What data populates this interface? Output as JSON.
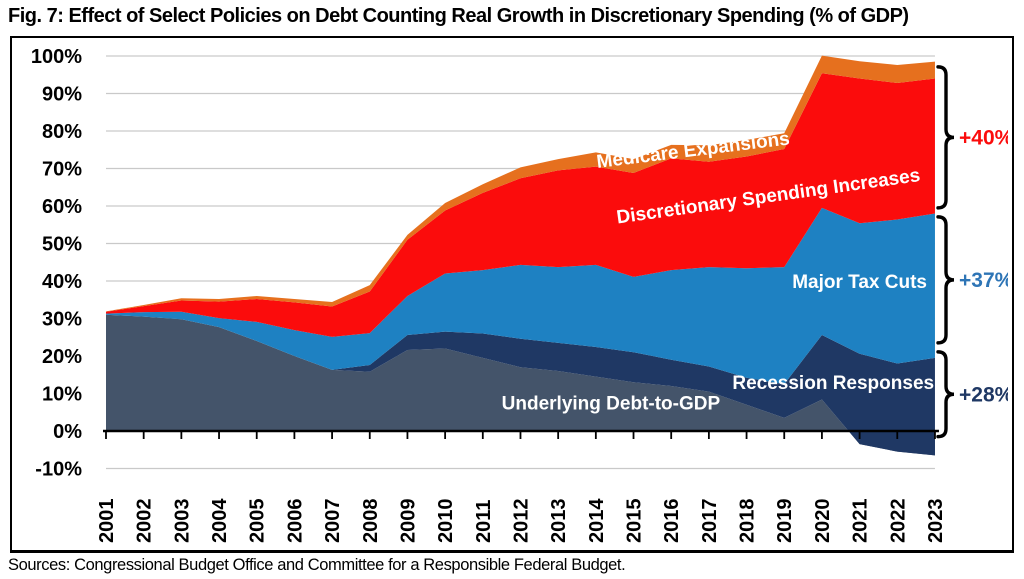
{
  "figure": {
    "title": "Fig. 7: Effect of Select Policies on Debt Counting Real Growth in Discretionary Spending (% of GDP)",
    "source": "Sources: Congressional Budget Office and Committee for a Responsible Federal Budget."
  },
  "chart_data": {
    "type": "area",
    "stacked": true,
    "title": "Fig. 7: Effect of Select Policies on Debt Counting Real Growth in Discretionary Spending (% of GDP)",
    "xlabel": "",
    "ylabel": "",
    "ylim": [
      -10,
      100
    ],
    "grid": true,
    "grid_color": "#C9C9C9",
    "axis_color": "#000000",
    "x": [
      2001,
      2002,
      2003,
      2004,
      2005,
      2006,
      2007,
      2008,
      2009,
      2010,
      2011,
      2012,
      2013,
      2014,
      2015,
      2016,
      2017,
      2018,
      2019,
      2020,
      2021,
      2022,
      2023
    ],
    "xticklabels": [
      "2001",
      "2002",
      "2003",
      "2004",
      "2005",
      "2006",
      "2007",
      "2008",
      "2009",
      "2010",
      "2011",
      "2012",
      "2013",
      "2014",
      "2015",
      "2016",
      "2017",
      "2018",
      "2019",
      "2020",
      "2021",
      "2022",
      "2023"
    ],
    "yticks": [
      100,
      90,
      80,
      70,
      60,
      50,
      40,
      30,
      20,
      10,
      0,
      -10
    ],
    "yticklabels": [
      "100%",
      "90%",
      "80%",
      "70%",
      "60%",
      "50%",
      "40%",
      "30%",
      "20%",
      "10%",
      "0%",
      "-10%"
    ],
    "series": [
      {
        "name": "Underlying Debt-to-GDP",
        "color": "#44546A",
        "label": {
          "year": 2014.4,
          "pct": 5.8,
          "rotate": 0
        },
        "values": [
          31.0,
          30.5,
          29.8,
          27.7,
          24.0,
          20.0,
          16.3,
          15.8,
          21.6,
          22.0,
          19.5,
          17.0,
          16.0,
          14.5,
          13.0,
          12.0,
          10.5,
          7.0,
          3.5,
          8.4,
          -3.5,
          -5.5,
          -6.5
        ]
      },
      {
        "name": "Recession Responses",
        "color": "#1F3864",
        "label": {
          "year": 2020.3,
          "pct": 11.2,
          "rotate": 0
        },
        "values": [
          0,
          0,
          0,
          0,
          0,
          0,
          0,
          1.8,
          4.0,
          4.5,
          6.5,
          7.6,
          7.5,
          7.9,
          8.0,
          7.0,
          6.7,
          7.2,
          9.0,
          17.2,
          24.1,
          23.5,
          26.0
        ]
      },
      {
        "name": "Major Tax Cuts",
        "color": "#1E81C2",
        "label": {
          "year": 2021.0,
          "pct": 38.2,
          "rotate": 0
        },
        "values": [
          0.3,
          1.2,
          2.0,
          2.4,
          5.1,
          6.9,
          8.8,
          8.5,
          10.4,
          15.5,
          16.9,
          19.7,
          20.2,
          21.9,
          20.1,
          23.9,
          26.5,
          29.2,
          31.2,
          33.9,
          34.8,
          38.4,
          38.5
        ]
      },
      {
        "name": "Discretionary Spending Increases",
        "color": "#FB0C0C",
        "label": {
          "year": 2018.6,
          "pct": 61.0,
          "rotate": -8
        },
        "values": [
          0.5,
          1.6,
          3.0,
          4.4,
          6.1,
          7.4,
          8.1,
          11.1,
          15.0,
          16.8,
          20.6,
          23.1,
          25.8,
          26.2,
          27.7,
          29.8,
          28.1,
          29.8,
          31.5,
          35.9,
          38.6,
          36.4,
          36.0
        ]
      },
      {
        "name": "Medicare Expansions",
        "color": "#E6701E",
        "label": {
          "year": 2016.6,
          "pct": 73.3,
          "rotate": -7
        },
        "values": [
          0.1,
          0.3,
          0.6,
          0.7,
          0.8,
          0.9,
          1.2,
          1.7,
          1.3,
          2.0,
          2.3,
          2.9,
          3.0,
          3.8,
          3.7,
          3.6,
          4.4,
          4.4,
          4.2,
          4.7,
          4.6,
          4.8,
          4.5
        ]
      }
    ],
    "annotations": [
      {
        "label": "+40%",
        "color": "#FB0C0C",
        "span_pct": [
          59.5,
          97.1
        ]
      },
      {
        "label": "+37%",
        "color": "#2E75B6",
        "span_pct": [
          23.5,
          57.1
        ]
      },
      {
        "label": "+28%",
        "color": "#1F3864",
        "span_pct": [
          -1.5,
          21.1
        ]
      }
    ],
    "legend": "labels drawn inside areas"
  }
}
